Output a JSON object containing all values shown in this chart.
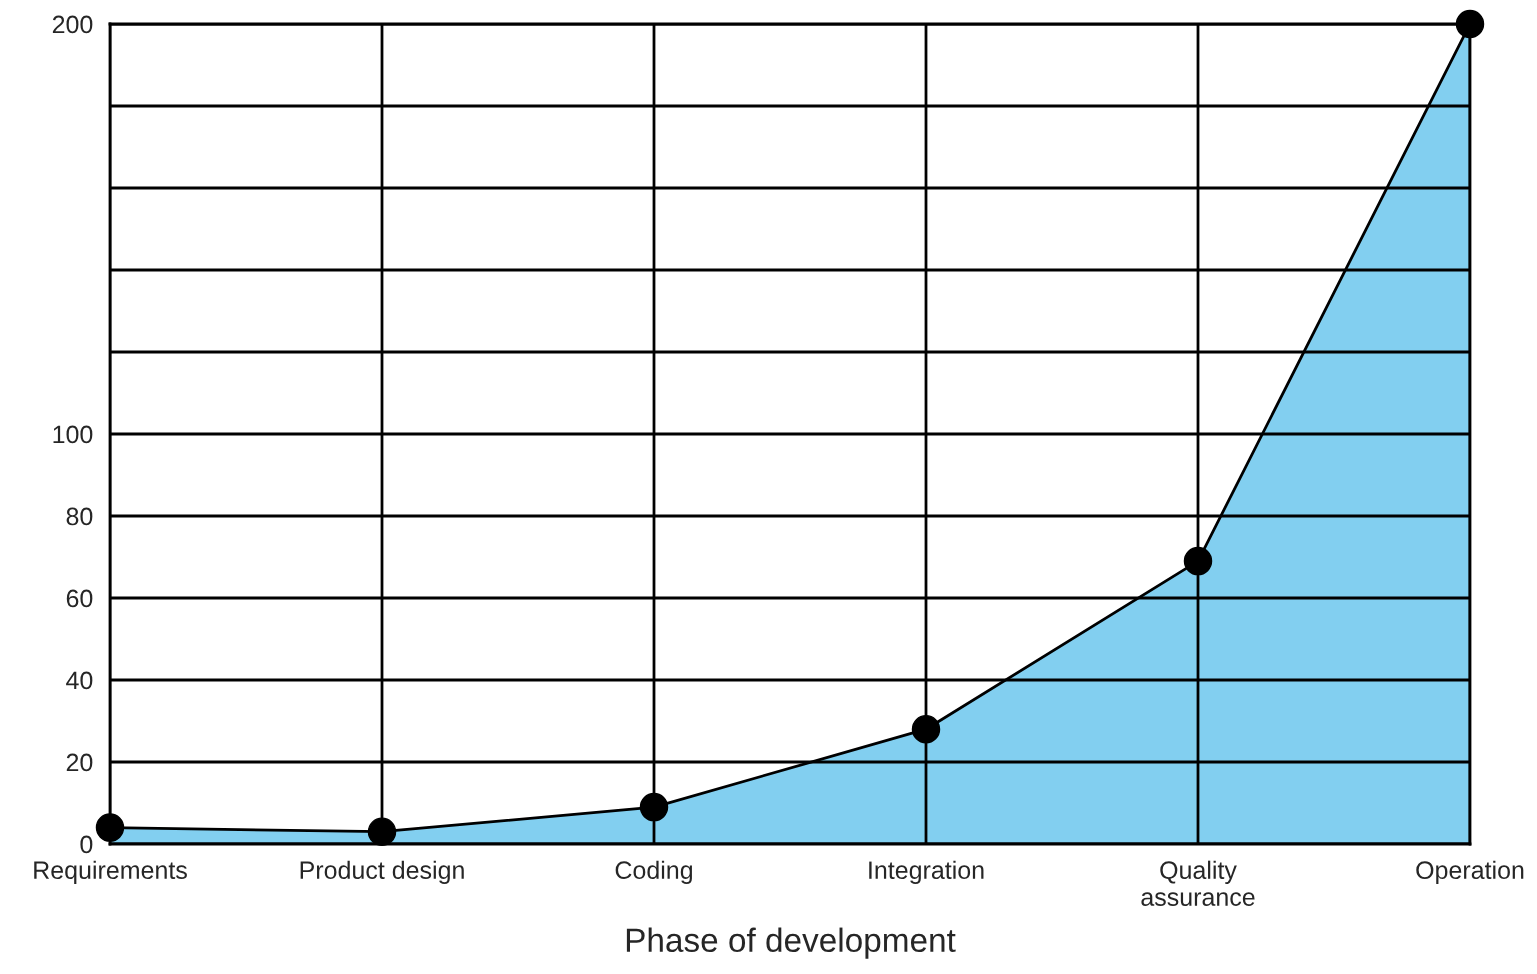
{
  "chart_data": {
    "type": "area",
    "xlabel": "Phase of development",
    "categories": [
      "Requirements",
      "Product design",
      "Coding",
      "Integration",
      "Quality\nassurance",
      "Operation"
    ],
    "series": [
      {
        "color": "#82cff0",
        "values": [
          4,
          3,
          9,
          28,
          69,
          200
        ]
      }
    ],
    "ylim": [
      0,
      200
    ],
    "yticks": [
      0,
      20,
      40,
      60,
      80,
      100,
      {
        "value": 120,
        "label": null
      },
      {
        "value": 140,
        "label": null
      },
      {
        "value": 160,
        "label": null
      },
      {
        "value": 180,
        "label": null
      },
      200
    ],
    "grid": true,
    "marker": "circle",
    "line_style": "solid",
    "legend": false
  }
}
